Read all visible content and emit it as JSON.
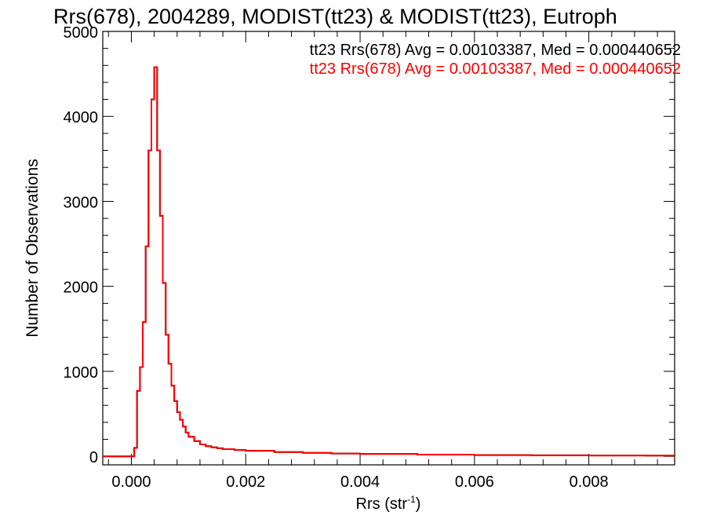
{
  "chart_data": {
    "type": "line",
    "title": "Rrs(678), 2004289, MODIST(tt23) & MODIST(tt23), Eutroph",
    "xlabel": "Rrs (str",
    "xlabel_sup": "-1",
    "xlabel_close": ")",
    "ylabel": "Number of Observations",
    "xlim": [
      -0.0005,
      0.0095
    ],
    "ylim": [
      -100,
      5000
    ],
    "xticks": [
      0.0,
      0.002,
      0.004,
      0.006,
      0.008
    ],
    "xtick_labels": [
      "0.000",
      "0.002",
      "0.004",
      "0.006",
      "0.008"
    ],
    "yticks": [
      0,
      1000,
      2000,
      3000,
      4000,
      5000
    ],
    "ytick_labels": [
      "0",
      "1000",
      "2000",
      "3000",
      "4000",
      "5000"
    ],
    "bin_width": 5e-05,
    "colors": {
      "series_tt23": "#000000",
      "series_tt23_compare": "#ff0000",
      "axes": "#000000"
    },
    "annotations": [
      {
        "text": "tt23 Rrs(678) Avg = 0.00103387, Med = 0.000440652",
        "color": "#000000"
      },
      {
        "text": "tt23 Rrs(678) Avg = 0.00103387, Med = 0.000440652",
        "color": "#ff0000"
      }
    ],
    "series_points": [
      [
        -0.0005,
        0
      ],
      [
        0.0,
        0
      ],
      [
        5e-05,
        100
      ],
      [
        0.0001,
        770
      ],
      [
        0.00015,
        1050
      ],
      [
        0.0002,
        1580
      ],
      [
        0.00025,
        2470
      ],
      [
        0.0003,
        3600
      ],
      [
        0.00035,
        4200
      ],
      [
        0.0004,
        4580
      ],
      [
        0.00045,
        3600
      ],
      [
        0.0005,
        2830
      ],
      [
        0.00055,
        2040
      ],
      [
        0.0006,
        1430
      ],
      [
        0.00065,
        1090
      ],
      [
        0.0007,
        830
      ],
      [
        0.00075,
        650
      ],
      [
        0.0008,
        520
      ],
      [
        0.00085,
        430
      ],
      [
        0.0009,
        350
      ],
      [
        0.00095,
        280
      ],
      [
        0.001,
        230
      ],
      [
        0.0011,
        180
      ],
      [
        0.0012,
        140
      ],
      [
        0.0013,
        120
      ],
      [
        0.0014,
        105
      ],
      [
        0.0015,
        95
      ],
      [
        0.0016,
        85
      ],
      [
        0.0018,
        75
      ],
      [
        0.002,
        65
      ],
      [
        0.0025,
        50
      ],
      [
        0.003,
        40
      ],
      [
        0.0035,
        33
      ],
      [
        0.004,
        28
      ],
      [
        0.005,
        20
      ],
      [
        0.006,
        15
      ],
      [
        0.007,
        12
      ],
      [
        0.008,
        10
      ],
      [
        0.009,
        8
      ],
      [
        0.0095,
        7
      ]
    ]
  }
}
